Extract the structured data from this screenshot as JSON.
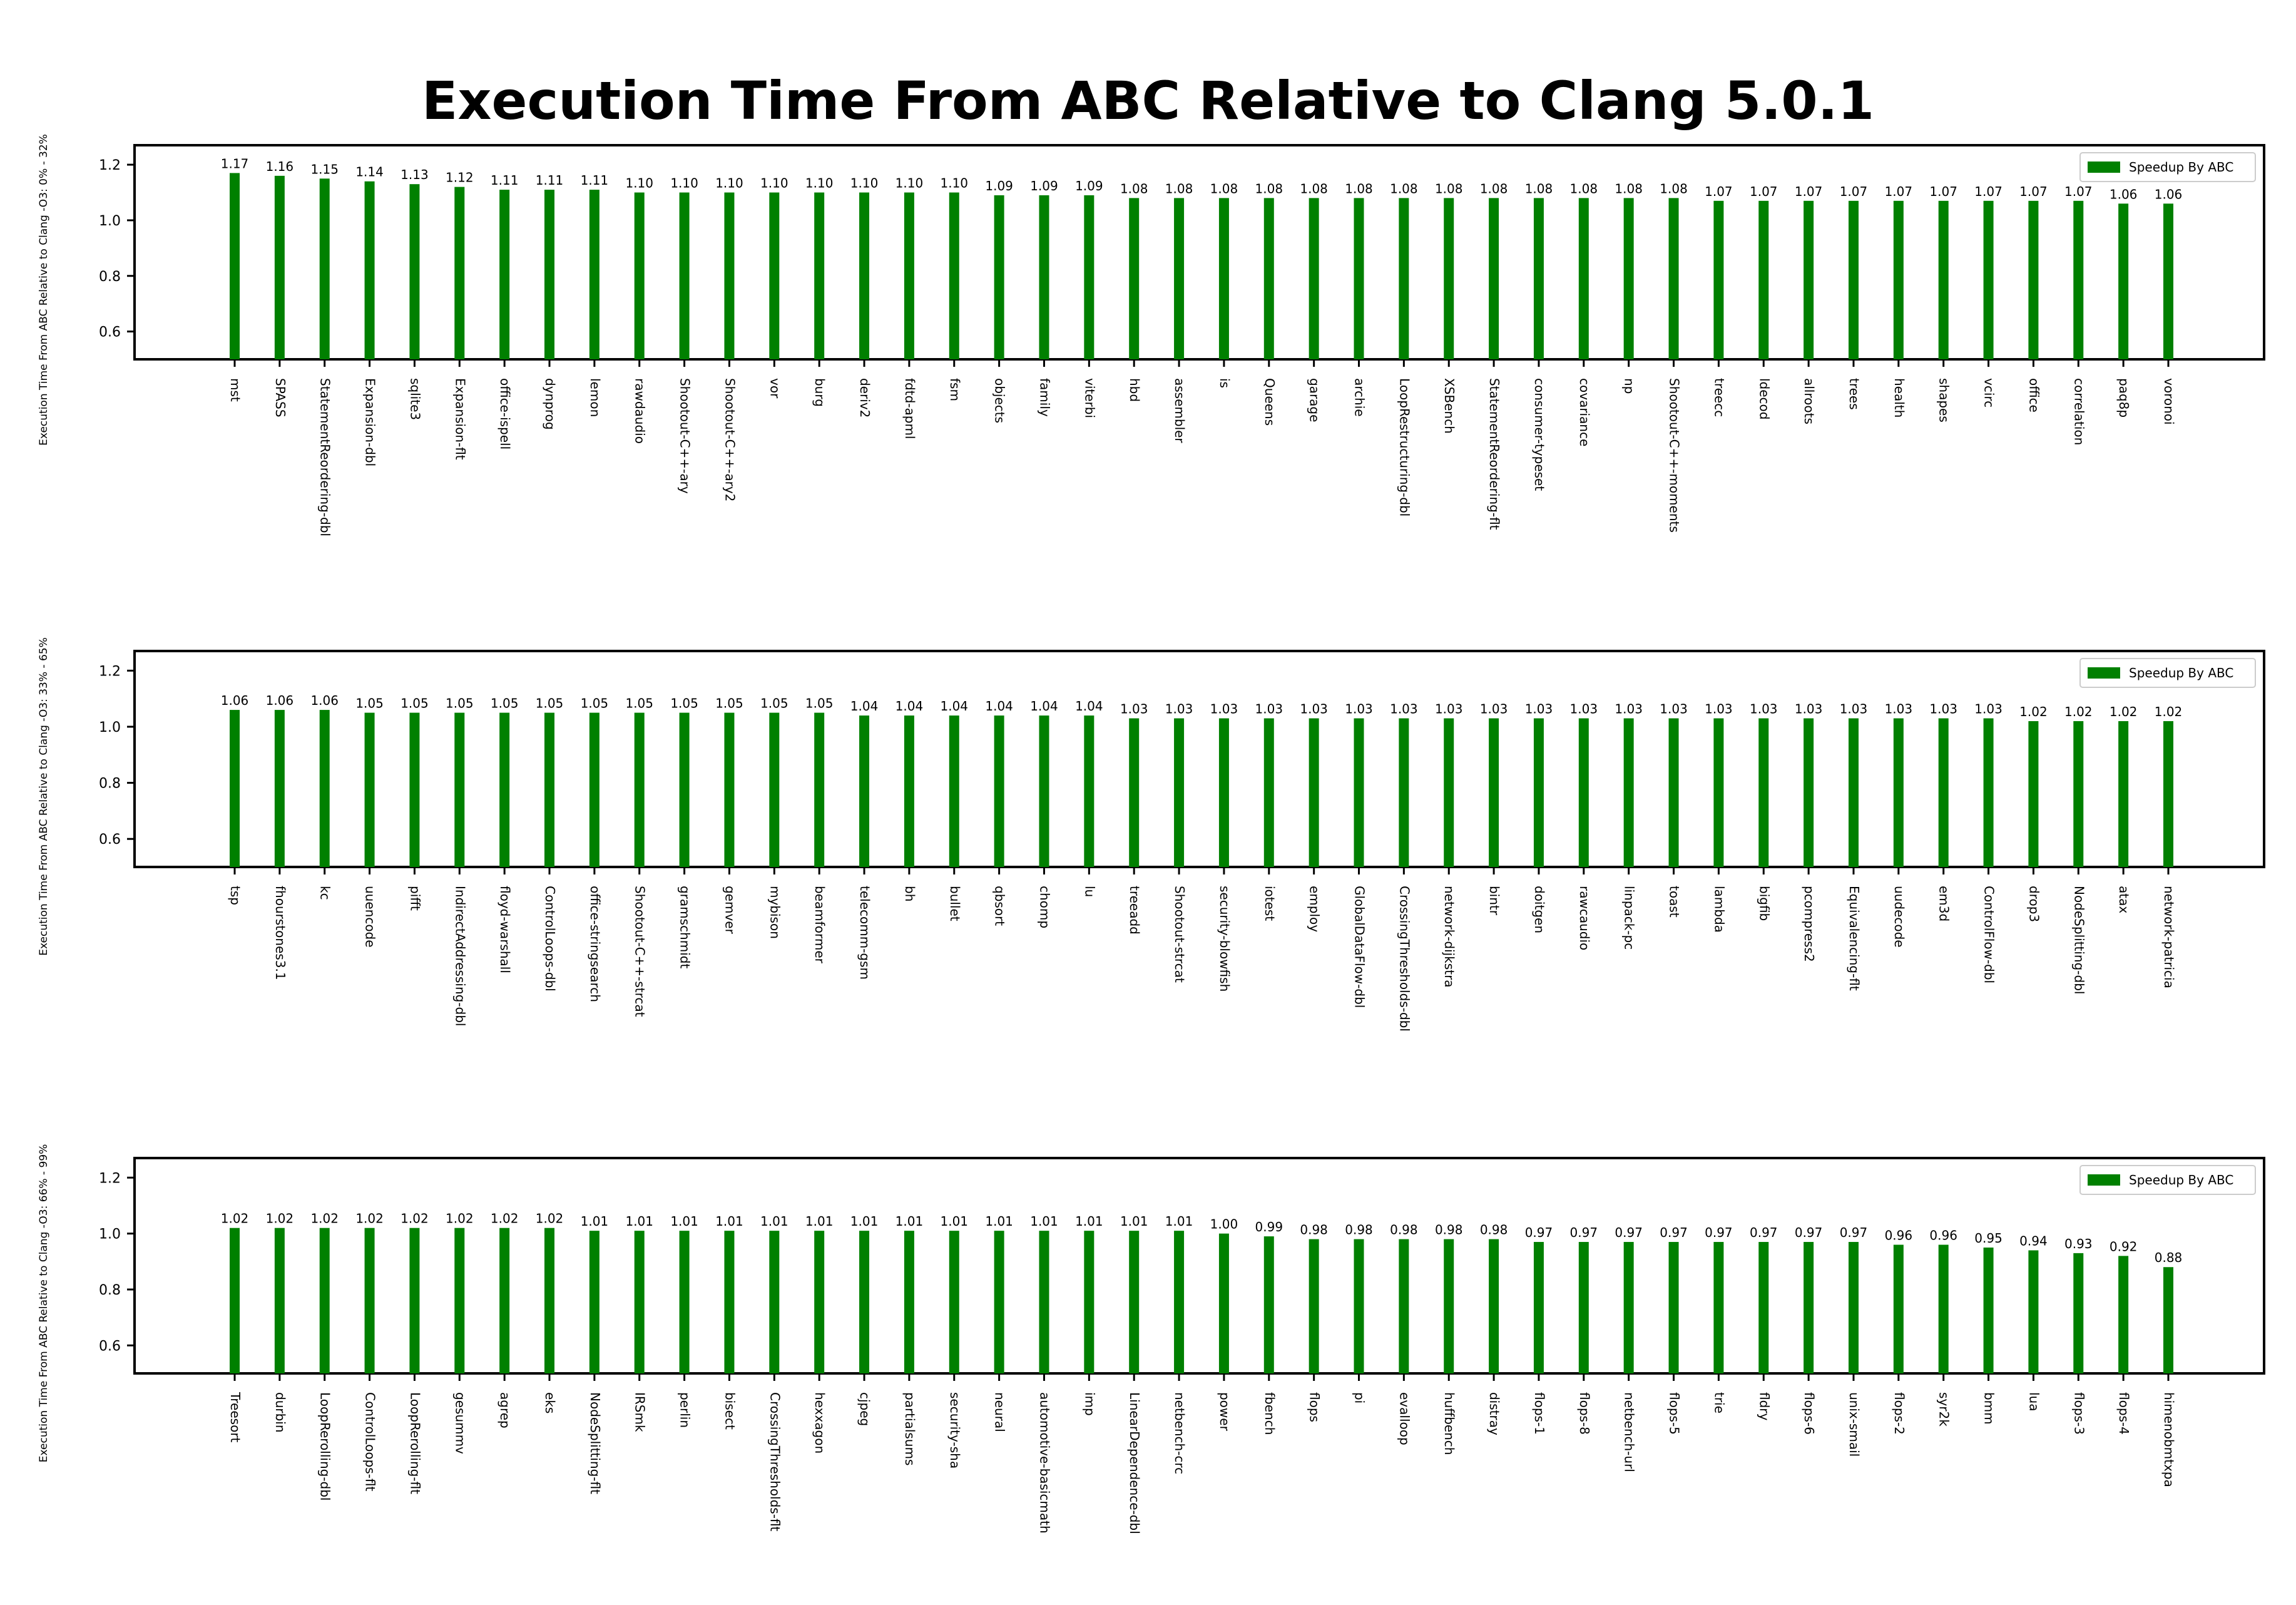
{
  "chart_data": {
    "type": "bar",
    "title": "Execution Time From ABC Relative to Clang 5.0.1",
    "legend_label": "Speedup By ABC",
    "legend_position": "top-right",
    "bar_color": "#008000",
    "grid": false,
    "panels": [
      {
        "ylabel": "Execution Time From ABC Relative to Clang -O3: 0% - 32%",
        "ylim": [
          0.5,
          1.27
        ],
        "yticks": [
          0.6,
          0.8,
          1.0,
          1.2
        ],
        "categories": [
          "mst",
          "SPASS",
          "StatementReordering-dbl",
          "Expansion-dbl",
          "sqlite3",
          "Expansion-flt",
          "office-ispell",
          "dynprog",
          "lemon",
          "rawdaudio",
          "Shootout-C++-ary",
          "Shootout-C++-ary2",
          "vor",
          "burg",
          "deriv2",
          "fdtd-apml",
          "fsm",
          "objects",
          "family",
          "viterbi",
          "hbd",
          "assembler",
          "is",
          "Queens",
          "garage",
          "archie",
          "LoopRestructuring-dbl",
          "XSBench",
          "StatementReordering-flt",
          "consumer-typeset",
          "covariance",
          "np",
          "Shootout-C++-moments",
          "treecc",
          "ldecod",
          "allroots",
          "trees",
          "health",
          "shapes",
          "vcirc",
          "office",
          "correlation",
          "paq8p",
          "voronoi"
        ],
        "values": [
          1.17,
          1.16,
          1.15,
          1.14,
          1.13,
          1.12,
          1.11,
          1.11,
          1.11,
          1.1,
          1.1,
          1.1,
          1.1,
          1.1,
          1.1,
          1.1,
          1.1,
          1.09,
          1.09,
          1.09,
          1.08,
          1.08,
          1.08,
          1.08,
          1.08,
          1.08,
          1.08,
          1.08,
          1.08,
          1.08,
          1.08,
          1.08,
          1.08,
          1.07,
          1.07,
          1.07,
          1.07,
          1.07,
          1.07,
          1.07,
          1.07,
          1.07,
          1.06,
          1.06
        ]
      },
      {
        "ylabel": "Execution Time From ABC Relative to Clang -O3: 33% - 65%",
        "ylim": [
          0.5,
          1.27
        ],
        "yticks": [
          0.6,
          0.8,
          1.0,
          1.2
        ],
        "categories": [
          "tsp",
          "fhourstones3.1",
          "kc",
          "uuencode",
          "pifft",
          "IndirectAddressing-dbl",
          "floyd-warshall",
          "ControlLoops-dbl",
          "office-stringsearch",
          "Shootout-C++-strcat",
          "gramschmidt",
          "gemver",
          "mybison",
          "beamformer",
          "telecomm-gsm",
          "bh",
          "bullet",
          "qbsort",
          "chomp",
          "lu",
          "treeadd",
          "Shootout-strcat",
          "security-blowfish",
          "iotest",
          "employ",
          "GlobalDataFlow-dbl",
          "CrossingThresholds-dbl",
          "network-dijkstra",
          "bintr",
          "doitgen",
          "rawcaudio",
          "linpack-pc",
          "toast",
          "lambda",
          "bigfib",
          "pcompress2",
          "Equivalencing-flt",
          "uudecode",
          "em3d",
          "ControlFlow-dbl",
          "drop3",
          "NodeSplitting-dbl",
          "atax",
          "network-patricia"
        ],
        "values": [
          1.06,
          1.06,
          1.06,
          1.05,
          1.05,
          1.05,
          1.05,
          1.05,
          1.05,
          1.05,
          1.05,
          1.05,
          1.05,
          1.05,
          1.04,
          1.04,
          1.04,
          1.04,
          1.04,
          1.04,
          1.03,
          1.03,
          1.03,
          1.03,
          1.03,
          1.03,
          1.03,
          1.03,
          1.03,
          1.03,
          1.03,
          1.03,
          1.03,
          1.03,
          1.03,
          1.03,
          1.03,
          1.03,
          1.03,
          1.03,
          1.02,
          1.02,
          1.02,
          1.02
        ]
      },
      {
        "ylabel": "Execution Time From ABC Relative to Clang -O3: 66% - 99%",
        "ylim": [
          0.5,
          1.27
        ],
        "yticks": [
          0.6,
          0.8,
          1.0,
          1.2
        ],
        "categories": [
          "Treesort",
          "durbin",
          "LoopRerolling-dbl",
          "ControlLoops-flt",
          "LoopRerolling-flt",
          "gesummv",
          "agrep",
          "eks",
          "NodeSplitting-flt",
          "IRSmk",
          "perlin",
          "bisect",
          "CrossingThresholds-flt",
          "hexxagon",
          "cjpeg",
          "partialsums",
          "security-sha",
          "neural",
          "automotive-basicmath",
          "imp",
          "LinearDependence-dbl",
          "netbench-crc",
          "power",
          "fbench",
          "flops",
          "pi",
          "evalloop",
          "huffbench",
          "distray",
          "flops-1",
          "flops-8",
          "netbench-url",
          "flops-5",
          "trie",
          "fldry",
          "flops-6",
          "unix-smail",
          "flops-2",
          "syr2k",
          "bmm",
          "lua",
          "flops-3",
          "flops-4",
          "himenobmtxpa"
        ],
        "values": [
          1.02,
          1.02,
          1.02,
          1.02,
          1.02,
          1.02,
          1.02,
          1.02,
          1.01,
          1.01,
          1.01,
          1.01,
          1.01,
          1.01,
          1.01,
          1.01,
          1.01,
          1.01,
          1.01,
          1.01,
          1.01,
          1.01,
          1.0,
          0.99,
          0.98,
          0.98,
          0.98,
          0.98,
          0.98,
          0.97,
          0.97,
          0.97,
          0.97,
          0.97,
          0.97,
          0.97,
          0.97,
          0.96,
          0.96,
          0.95,
          0.94,
          0.93,
          0.92,
          0.88
        ]
      }
    ]
  }
}
